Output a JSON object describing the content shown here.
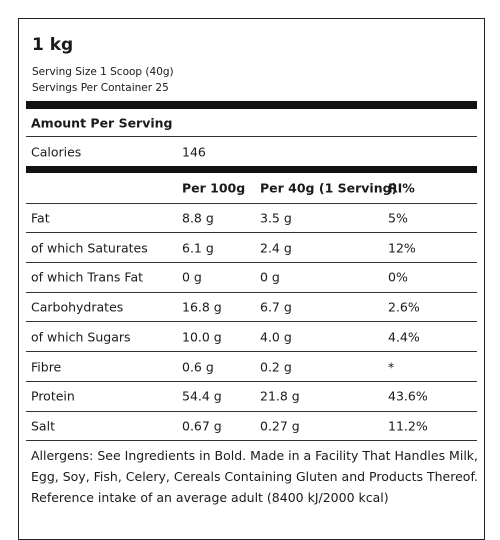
{
  "header": {
    "title": "1 kg",
    "serving_size": "Serving Size 1 Scoop (40g)",
    "servings": "Servings Per Container 25"
  },
  "amount_label": "Amount Per Serving",
  "calories": {
    "label": "Calories",
    "value": "146"
  },
  "table": {
    "columns": [
      "Per 100g",
      "Per 40g (1 Serving)",
      "RI%"
    ],
    "rows": [
      [
        "Fat",
        "8.8 g",
        "3.5 g",
        "5%"
      ],
      [
        "of which Saturates",
        "6.1 g",
        "2.4 g",
        "12%"
      ],
      [
        "of which Trans Fat",
        "0 g",
        "0 g",
        "0%"
      ],
      [
        "Carbohydrates",
        "16.8 g",
        "6.7 g",
        "2.6%"
      ],
      [
        "of which Sugars",
        "10.0 g",
        "4.0 g",
        "4.4%"
      ],
      [
        "Fibre",
        "0.6 g",
        "0.2 g",
        "*"
      ],
      [
        "Protein",
        "54.4 g",
        "21.8 g",
        "43.6%"
      ],
      [
        "Salt",
        "0.67 g",
        "0.27 g",
        "11.2%"
      ]
    ]
  },
  "footer": [
    "Allergens: See Ingredients in Bold. Made in a Facility That Handles Milk,",
    "Egg, Soy, Fish, Celery, Cereals Containing Gluten and Products Thereof.",
    "Reference intake of an average adult (8400 kJ/2000 kcal)"
  ]
}
